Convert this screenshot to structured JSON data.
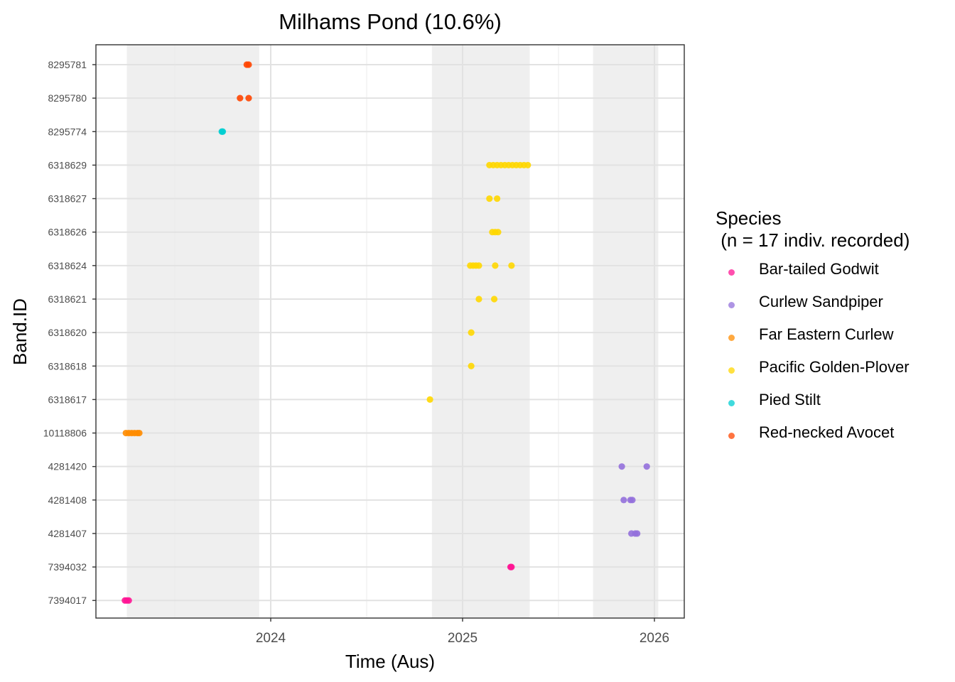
{
  "chart_data": {
    "type": "scatter",
    "title": "Milhams Pond (10.6%)",
    "xlabel": "Time (Aus)",
    "ylabel": "Band.ID",
    "x_ticks": [
      "2024",
      "2025",
      "2026"
    ],
    "xlim": [
      2023.1,
      2026.15
    ],
    "shaded_periods": [
      [
        2023.25,
        2023.94
      ],
      [
        2024.84,
        2025.35
      ],
      [
        2025.68,
        2026.02
      ]
    ],
    "band_ids": [
      "8295781",
      "8295780",
      "8295774",
      "6318629",
      "6318627",
      "6318626",
      "6318624",
      "6318621",
      "6318620",
      "6318618",
      "6318617",
      "10118806",
      "4281420",
      "4281408",
      "4281407",
      "7394032",
      "7394017"
    ],
    "legend": {
      "title": "Species\n (n = 17 indiv. recorded)",
      "position": "right"
    },
    "series": [
      {
        "name": "Bar-tailed Godwit",
        "color": "#ff1493",
        "points": [
          {
            "band": "7394017",
            "x": 2023.24
          },
          {
            "band": "7394017",
            "x": 2023.25
          },
          {
            "band": "7394017",
            "x": 2023.26
          },
          {
            "band": "7394032",
            "x": 2025.25
          },
          {
            "band": "7394032",
            "x": 2025.255
          }
        ]
      },
      {
        "name": "Curlew Sandpiper",
        "color": "#9370db",
        "points": [
          {
            "band": "4281420",
            "x": 2025.83
          },
          {
            "band": "4281420",
            "x": 2025.96
          },
          {
            "band": "4281408",
            "x": 2025.84
          },
          {
            "band": "4281408",
            "x": 2025.875
          },
          {
            "band": "4281408",
            "x": 2025.885
          },
          {
            "band": "4281407",
            "x": 2025.88
          },
          {
            "band": "4281407",
            "x": 2025.9
          },
          {
            "band": "4281407",
            "x": 2025.91
          }
        ]
      },
      {
        "name": "Far Eastern Curlew",
        "color": "#ff8c00",
        "points": [
          {
            "band": "10118806",
            "x": 2023.245
          },
          {
            "band": "10118806",
            "x": 2023.26
          },
          {
            "band": "10118806",
            "x": 2023.275
          },
          {
            "band": "10118806",
            "x": 2023.29
          },
          {
            "band": "10118806",
            "x": 2023.305
          },
          {
            "band": "10118806",
            "x": 2023.315
          }
        ]
      },
      {
        "name": "Pacific Golden-Plover",
        "color": "#ffd700",
        "points": [
          {
            "band": "6318629",
            "x": 2025.14
          },
          {
            "band": "6318629",
            "x": 2025.16
          },
          {
            "band": "6318629",
            "x": 2025.18
          },
          {
            "band": "6318629",
            "x": 2025.2
          },
          {
            "band": "6318629",
            "x": 2025.22
          },
          {
            "band": "6318629",
            "x": 2025.24
          },
          {
            "band": "6318629",
            "x": 2025.26
          },
          {
            "band": "6318629",
            "x": 2025.28
          },
          {
            "band": "6318629",
            "x": 2025.3
          },
          {
            "band": "6318629",
            "x": 2025.32
          },
          {
            "band": "6318629",
            "x": 2025.34
          },
          {
            "band": "6318627",
            "x": 2025.14
          },
          {
            "band": "6318627",
            "x": 2025.18
          },
          {
            "band": "6318626",
            "x": 2025.155
          },
          {
            "band": "6318626",
            "x": 2025.17
          },
          {
            "band": "6318626",
            "x": 2025.185
          },
          {
            "band": "6318624",
            "x": 2025.04
          },
          {
            "band": "6318624",
            "x": 2025.055
          },
          {
            "band": "6318624",
            "x": 2025.07
          },
          {
            "band": "6318624",
            "x": 2025.085
          },
          {
            "band": "6318624",
            "x": 2025.17
          },
          {
            "band": "6318624",
            "x": 2025.255
          },
          {
            "band": "6318621",
            "x": 2025.085
          },
          {
            "band": "6318621",
            "x": 2025.165
          },
          {
            "band": "6318620",
            "x": 2025.045
          },
          {
            "band": "6318618",
            "x": 2025.045
          },
          {
            "band": "6318617",
            "x": 2024.83
          }
        ]
      },
      {
        "name": "Pied Stilt",
        "color": "#00ced1",
        "points": [
          {
            "band": "8295774",
            "x": 2023.745
          },
          {
            "band": "8295774",
            "x": 2023.75
          }
        ]
      },
      {
        "name": "Red-necked Avocet",
        "color": "#ff4500",
        "points": [
          {
            "band": "8295781",
            "x": 2023.875
          },
          {
            "band": "8295781",
            "x": 2023.885
          },
          {
            "band": "8295780",
            "x": 2023.84
          },
          {
            "band": "8295780",
            "x": 2023.885
          }
        ]
      }
    ]
  }
}
